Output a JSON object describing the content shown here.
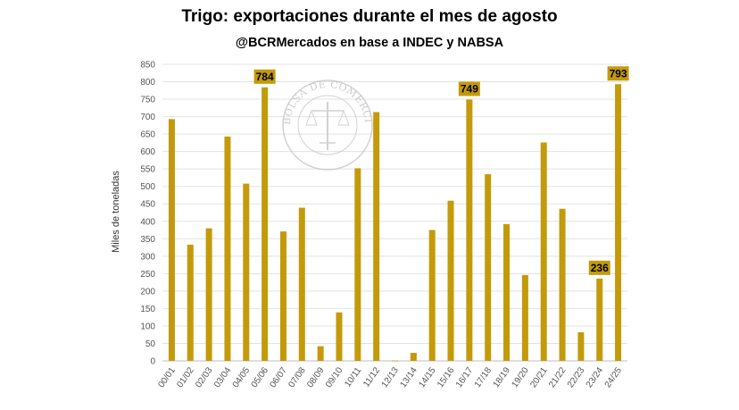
{
  "chart_data": {
    "type": "bar",
    "title": "Trigo: exportaciones durante el mes de agosto",
    "subtitle": "@BCRMercados en base a INDEC y NABSA",
    "ylabel": "Miles de toneladas",
    "xlabel": "",
    "ylim": [
      0,
      850
    ],
    "ytick_step": 50,
    "grid": true,
    "bar_color": "#c49a0a",
    "label_box_color": "#c49a0a",
    "categories": [
      "00/01",
      "01/02",
      "02/03",
      "03/04",
      "04/05",
      "05/06",
      "06/07",
      "07/08",
      "08/09",
      "09/10",
      "10/11",
      "11/12",
      "12/13",
      "13/14",
      "14/15",
      "15/16",
      "16/17",
      "17/18",
      "18/19",
      "19/20",
      "20/21",
      "21/22",
      "22/23",
      "23/24",
      "24/25"
    ],
    "values": [
      693,
      333,
      380,
      643,
      508,
      784,
      371,
      439,
      42,
      139,
      552,
      713,
      1,
      23,
      375,
      459,
      749,
      535,
      392,
      246,
      626,
      436,
      82,
      236,
      793
    ],
    "data_labels": {
      "05/06": "784",
      "16/17": "749",
      "23/24": "236",
      "24/25": "793"
    },
    "watermark": "BOLSA DE COMERCIO DE ROSARIO"
  }
}
